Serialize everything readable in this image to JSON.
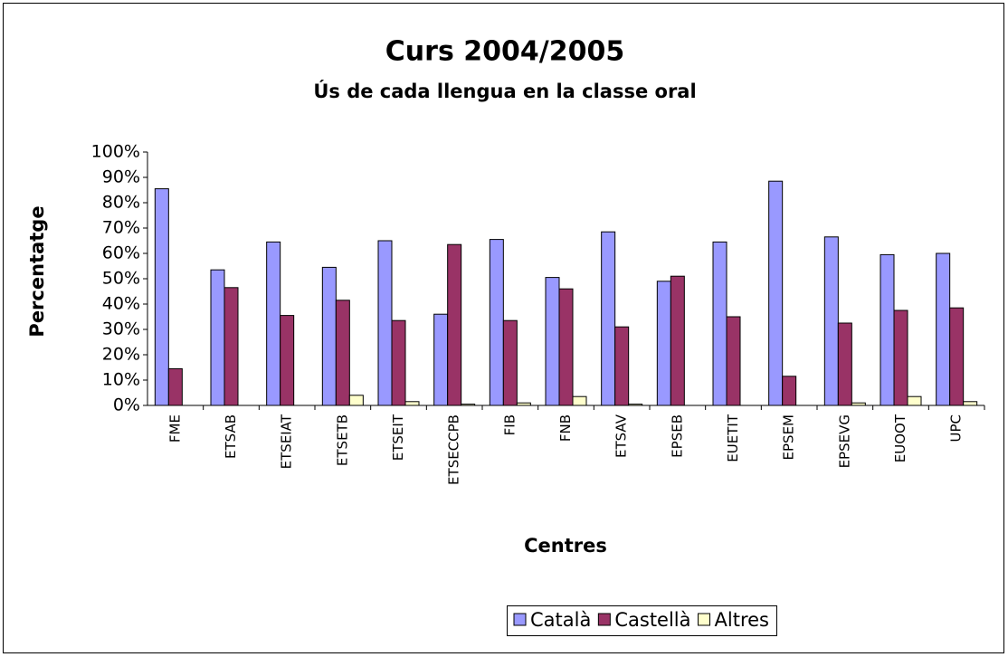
{
  "chart_data": {
    "type": "bar",
    "title": "Curs 2004/2005",
    "subtitle": "Ús de cada llengua en la classe oral",
    "y_label": "Percentatge",
    "x_label": "Centres",
    "categories": [
      "FME",
      "ETSAB",
      "ETSEIAT",
      "ETSETB",
      "ETSEIT",
      "ETSECCPB",
      "FIB",
      "FNB",
      "ETSAV",
      "EPSEB",
      "EUETIT",
      "EPSEM",
      "EPSEVG",
      "EUOOT",
      "UPC"
    ],
    "series": [
      {
        "name": "Català",
        "color": "#9999ff",
        "values": [
          85.5,
          53.5,
          64.5,
          54.5,
          65,
          36,
          65.5,
          50.5,
          68.5,
          49,
          64.5,
          88.5,
          66.5,
          59.5,
          60
        ]
      },
      {
        "name": "Castellà",
        "color": "#993366",
        "values": [
          14.5,
          46.5,
          35.5,
          41.5,
          33.5,
          63.5,
          33.5,
          46,
          31,
          51,
          35,
          11.5,
          32.5,
          37.5,
          38.5
        ]
      },
      {
        "name": "Altres",
        "color": "#ffffcc",
        "values": [
          0,
          0,
          0,
          4,
          1.5,
          0.5,
          1,
          3.5,
          0.5,
          0,
          0,
          0,
          1,
          3.5,
          1.5
        ]
      }
    ],
    "ylim": [
      0,
      100
    ],
    "yticks": [
      {
        "value": 0,
        "label": "0%"
      },
      {
        "value": 10,
        "label": "10%"
      },
      {
        "value": 20,
        "label": "20%"
      },
      {
        "value": 30,
        "label": "30%"
      },
      {
        "value": 40,
        "label": "40%"
      },
      {
        "value": 50,
        "label": "50%"
      },
      {
        "value": 60,
        "label": "60%"
      },
      {
        "value": 70,
        "label": "70%"
      },
      {
        "value": 80,
        "label": "80%"
      },
      {
        "value": 90,
        "label": "90%"
      },
      {
        "value": 100,
        "label": "100%"
      }
    ],
    "grid": false,
    "legend": "bottom"
  }
}
